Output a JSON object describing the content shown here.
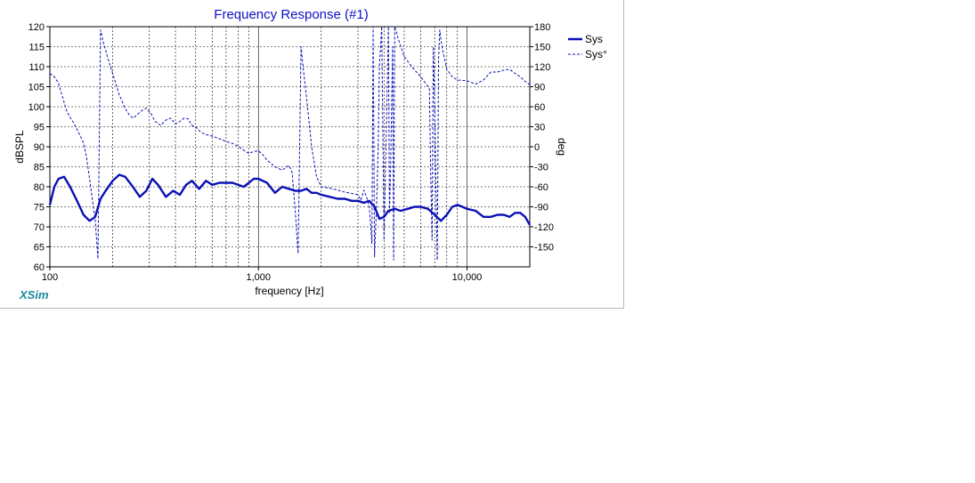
{
  "chart_data": {
    "type": "line",
    "title": "Frequency Response (#1)",
    "xlabel": "frequency [Hz]",
    "ylabel_left": "dBSPL",
    "ylabel_right": "deg",
    "x_scale": "log",
    "xlim": [
      100,
      20000
    ],
    "ylim_left": [
      60,
      120
    ],
    "ylim_right": [
      -180,
      180
    ],
    "grid": true,
    "legend_placement": "top-right, outside plot",
    "x_tick_labels": [
      {
        "value": 100,
        "label": "100"
      },
      {
        "value": 1000,
        "label": "1,000"
      },
      {
        "value": 10000,
        "label": "10,000"
      }
    ],
    "y_left_ticks": [
      60,
      65,
      70,
      75,
      80,
      85,
      90,
      95,
      100,
      105,
      110,
      115,
      120
    ],
    "y_right_ticks": [
      -150,
      -120,
      -90,
      -60,
      -30,
      0,
      30,
      60,
      90,
      120,
      150,
      180
    ],
    "series": [
      {
        "name": "Sys",
        "axis": "left",
        "style": "solid-thick",
        "color": "#0a10b4",
        "x": [
          100,
          105,
          110,
          117,
          125,
          135,
          145,
          155,
          165,
          175,
          185,
          200,
          215,
          230,
          250,
          270,
          290,
          310,
          330,
          360,
          390,
          420,
          450,
          480,
          520,
          560,
          600,
          650,
          700,
          750,
          800,
          850,
          900,
          950,
          1000,
          1100,
          1200,
          1300,
          1400,
          1500,
          1600,
          1700,
          1800,
          1900,
          2000,
          2200,
          2400,
          2600,
          2800,
          3000,
          3200,
          3400,
          3600,
          3800,
          4000,
          4200,
          4500,
          4800,
          5200,
          5600,
          6000,
          6500,
          7000,
          7500,
          8000,
          8500,
          9000,
          9500,
          10000,
          11000,
          12000,
          13000,
          14000,
          15000,
          16000,
          17000,
          18000,
          19000,
          20000
        ],
        "values": [
          75.5,
          80,
          82,
          82.5,
          80,
          76.5,
          73,
          71.5,
          72.5,
          77,
          79,
          81.5,
          83,
          82.5,
          80,
          77.5,
          79,
          82,
          80.5,
          77.5,
          79,
          78,
          80.5,
          81.5,
          79.5,
          81.5,
          80.5,
          81,
          81,
          81,
          80.5,
          80,
          81,
          82,
          82,
          81,
          78.5,
          80,
          79.5,
          79,
          79,
          79.5,
          78.5,
          78.5,
          78,
          77.5,
          77,
          77,
          76.5,
          76.5,
          76,
          76.5,
          75,
          72,
          72.5,
          74,
          74.5,
          74,
          74.5,
          75,
          75,
          74.5,
          73,
          71.5,
          73,
          75,
          75.5,
          75,
          74.5,
          74,
          72.5,
          72.5,
          73,
          73,
          72.5,
          73.5,
          73.5,
          72.5,
          70.5
        ]
      },
      {
        "name": "Sys°",
        "axis": "right",
        "style": "dashed-thin",
        "color": "#0a10b4",
        "x": [
          100,
          105,
          110,
          115,
          120,
          125,
          130,
          135,
          140,
          145,
          150,
          155,
          160,
          165,
          170,
          175,
          180,
          190,
          200,
          215,
          230,
          240,
          250,
          260,
          275,
          290,
          305,
          320,
          340,
          360,
          380,
          400,
          420,
          440,
          460,
          480,
          500,
          520,
          550,
          600,
          650,
          700,
          750,
          800,
          850,
          900,
          950,
          1000,
          1050,
          1100,
          1200,
          1300,
          1400,
          1450,
          1500,
          1550,
          1600,
          1650,
          1700,
          1800,
          1900,
          2000,
          2200,
          2400,
          2600,
          2800,
          3000,
          3100,
          3200,
          3300,
          3400,
          3500,
          3550,
          3600,
          3650,
          3700,
          3750,
          3800,
          3900,
          4000,
          4050,
          4100,
          4150,
          4200,
          4250,
          4300,
          4350,
          4400,
          4450,
          4500,
          4700,
          5000,
          5500,
          6000,
          6300,
          6600,
          6700,
          6800,
          6900,
          7000,
          7100,
          7200,
          7300,
          7400,
          7500,
          7700,
          8000,
          8500,
          9000,
          10000,
          11000,
          12000,
          13000,
          14000,
          15000,
          16000,
          17000,
          18000,
          19000,
          20000
        ],
        "values": [
          110,
          105,
          95,
          75,
          55,
          44,
          36,
          26,
          16,
          6,
          -16,
          -48,
          -80,
          -110,
          -168,
          175,
          158,
          132,
          110,
          78,
          57,
          48,
          43,
          47,
          54,
          58,
          50,
          38,
          32,
          40,
          43,
          34,
          38,
          43,
          42,
          32,
          30,
          24,
          19,
          16,
          12,
          8,
          5,
          1,
          -5,
          -10,
          -7,
          -6,
          -12,
          -20,
          -30,
          -35,
          -28,
          -38,
          -95,
          -160,
          150,
          110,
          75,
          0,
          -45,
          -60,
          -62,
          -65,
          -68,
          -70,
          -72,
          -80,
          -65,
          -75,
          -90,
          -145,
          180,
          -165,
          -120,
          -70,
          0,
          120,
          180,
          -140,
          -60,
          20,
          100,
          180,
          -100,
          -40,
          60,
          150,
          -170,
          180,
          160,
          135,
          118,
          105,
          96,
          88,
          -40,
          -140,
          150,
          60,
          -60,
          -170,
          130,
          175,
          160,
          140,
          116,
          105,
          100,
          99,
          94,
          100,
          112,
          112,
          115,
          116,
          110,
          105,
          98,
          93
        ]
      }
    ]
  },
  "legend": {
    "items": [
      {
        "label": "Sys",
        "style": "solid"
      },
      {
        "label": "Sys°",
        "style": "dashed"
      }
    ]
  },
  "branding": {
    "label": "XSim"
  }
}
